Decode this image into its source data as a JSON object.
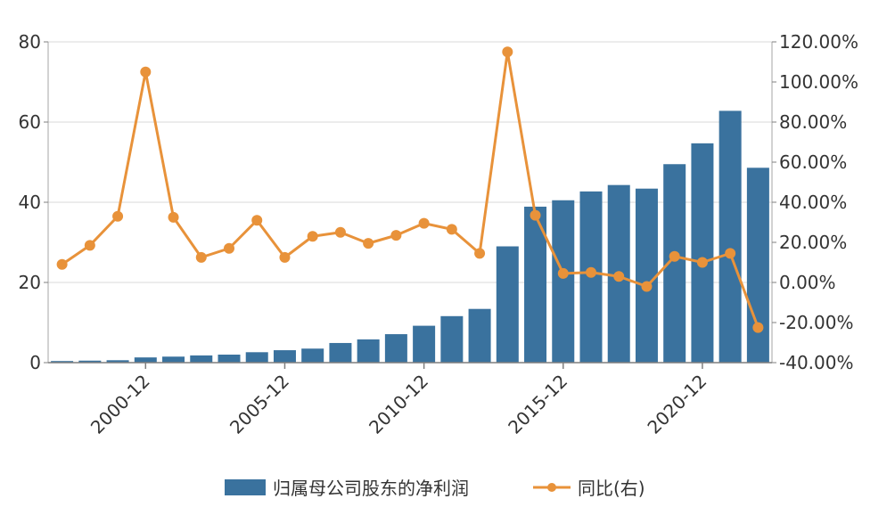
{
  "chart_data": {
    "type": "bar+line",
    "categories": [
      "1997-12",
      "1998-12",
      "1999-12",
      "2000-12",
      "2001-12",
      "2002-12",
      "2003-12",
      "2004-12",
      "2005-12",
      "2006-12",
      "2007-12",
      "2008-12",
      "2009-12",
      "2010-12",
      "2011-12",
      "2012-12",
      "2013-12",
      "2014-12",
      "2015-12",
      "2016-12",
      "2017-12",
      "2018-12",
      "2019-12",
      "2020-12",
      "2021-12",
      "2022-12"
    ],
    "x_tick_labels": [
      "2000-12",
      "2005-12",
      "2010-12",
      "2015-12",
      "2020-12"
    ],
    "series": [
      {
        "name": "归属母公司股东的净利润",
        "type": "bar",
        "axis": "left",
        "color": "#3a729e",
        "values": [
          0.4,
          0.5,
          0.6,
          1.3,
          1.5,
          1.8,
          2.0,
          2.6,
          3.1,
          3.5,
          4.9,
          5.8,
          7.1,
          9.2,
          11.6,
          13.4,
          29.0,
          38.9,
          40.5,
          42.7,
          44.3,
          43.4,
          49.5,
          54.7,
          62.8,
          48.6
        ]
      },
      {
        "name": "同比(右)",
        "type": "line",
        "axis": "right",
        "color": "#e8923a",
        "values": [
          9.0,
          18.5,
          33.0,
          105.0,
          32.5,
          12.5,
          17.0,
          31.0,
          12.5,
          23.0,
          25.0,
          19.5,
          23.5,
          29.5,
          26.5,
          14.5,
          115.0,
          33.5,
          4.5,
          5.0,
          3.0,
          -2.0,
          13.0,
          10.0,
          14.5,
          -22.5
        ]
      }
    ],
    "y_left": {
      "min": 0,
      "max": 80,
      "ticks": [
        "0",
        "20",
        "40",
        "60",
        "80"
      ]
    },
    "y_right": {
      "min": -40,
      "max": 120,
      "ticks": [
        "-40.00%",
        "-20.00%",
        "0.00%",
        "20.00%",
        "40.00%",
        "60.00%",
        "80.00%",
        "100.00%",
        "120.00%"
      ]
    },
    "grid": true,
    "legend_position": "bottom"
  }
}
